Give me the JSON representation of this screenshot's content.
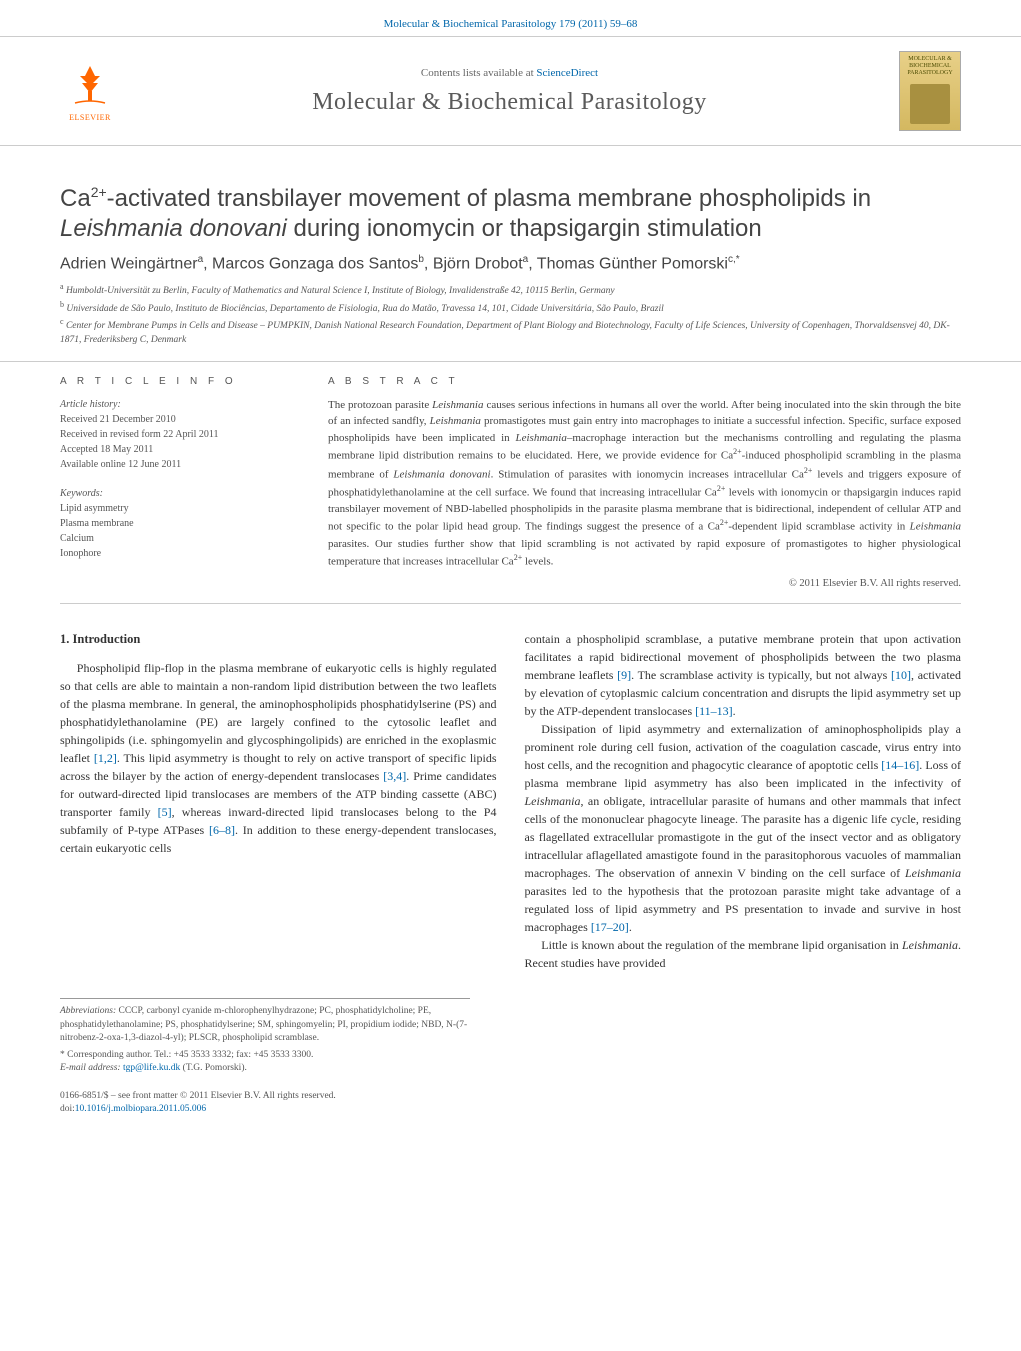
{
  "header": {
    "citation": "Molecular & Biochemical Parasitology 179 (2011) 59–68",
    "sd_prefix": "Contents lists available at ",
    "sd_link": "ScienceDirect",
    "journal": "Molecular & Biochemical Parasitology",
    "publisher": "ELSEVIER",
    "cover_label": "MOLECULAR & BIOCHEMICAL PARASITOLOGY"
  },
  "title": {
    "html": "Ca<sup>2+</sup>-activated transbilayer movement of plasma membrane phospholipids in <em>Leishmania donovani</em> during ionomycin or thapsigargin stimulation"
  },
  "authors": {
    "html": "Adrien Weingärtner<sup>a</sup>, Marcos Gonzaga dos Santos<sup>b</sup>, Björn Drobot<sup>a</sup>, Thomas Günther Pomorski<sup>c,*</sup>"
  },
  "affiliations": [
    {
      "sup": "a",
      "text": "Humboldt-Universität zu Berlin, Faculty of Mathematics and Natural Science I, Institute of Biology, Invalidenstraße 42, 10115 Berlin, Germany"
    },
    {
      "sup": "b",
      "text": "Universidade de São Paulo, Instituto de Biociências, Departamento de Fisiologia, Rua do Matão, Travessa 14, 101, Cidade Universitária, São Paulo, Brazil"
    },
    {
      "sup": "c",
      "text": "Center for Membrane Pumps in Cells and Disease – PUMPKIN, Danish National Research Foundation, Department of Plant Biology and Biotechnology, Faculty of Life Sciences, University of Copenhagen, Thorvaldsensvej 40, DK-1871, Frederiksberg C, Denmark"
    }
  ],
  "article_info": {
    "heading": "A R T I C L E   I N F O",
    "history_label": "Article history:",
    "history": [
      "Received 21 December 2010",
      "Received in revised form 22 April 2011",
      "Accepted 18 May 2011",
      "Available online 12 June 2011"
    ],
    "keywords_label": "Keywords:",
    "keywords": [
      "Lipid asymmetry",
      "Plasma membrane",
      "Calcium",
      "Ionophore"
    ]
  },
  "abstract": {
    "heading": "A B S T R A C T",
    "text_html": "The protozoan parasite <em>Leishmania</em> causes serious infections in humans all over the world. After being inoculated into the skin through the bite of an infected sandfly, <em>Leishmania</em> promastigotes must gain entry into macrophages to initiate a successful infection. Specific, surface exposed phospholipids have been implicated in <em>Leishmania</em>–macrophage interaction but the mechanisms controlling and regulating the plasma membrane lipid distribution remains to be elucidated. Here, we provide evidence for Ca<sup>2+</sup>-induced phospholipid scrambling in the plasma membrane of <em>Leishmania donovani</em>. Stimulation of parasites with ionomycin increases intracellular Ca<sup>2+</sup> levels and triggers exposure of phosphatidylethanolamine at the cell surface. We found that increasing intracellular Ca<sup>2+</sup> levels with ionomycin or thapsigargin induces rapid transbilayer movement of NBD-labelled phospholipids in the parasite plasma membrane that is bidirectional, independent of cellular ATP and not specific to the polar lipid head group. The findings suggest the presence of a Ca<sup>2+</sup>-dependent lipid scramblase activity in <em>Leishmania</em> parasites. Our studies further show that lipid scrambling is not activated by rapid exposure of promastigotes to higher physiological temperature that increases intracellular Ca<sup>2+</sup> levels.",
    "copyright": "© 2011 Elsevier B.V. All rights reserved."
  },
  "body": {
    "intro_heading": "1.  Introduction",
    "col1_p1_html": "Phospholipid flip-flop in the plasma membrane of eukaryotic cells is highly regulated so that cells are able to maintain a non-random lipid distribution between the two leaflets of the plasma membrane. In general, the aminophospholipids phosphatidylserine (PS) and phosphatidylethanolamine (PE) are largely confined to the cytosolic leaflet and sphingolipids (i.e. sphingomyelin and glycosphingolipids) are enriched in the exoplasmic leaflet <span class=\"ref\">[1,2]</span>. This lipid asymmetry is thought to rely on active transport of specific lipids across the bilayer by the action of energy-dependent translocases <span class=\"ref\">[3,4]</span>. Prime candidates for outward-directed lipid translocases are members of the ATP binding cassette (ABC) transporter family <span class=\"ref\">[5]</span>, whereas inward-directed lipid translocases belong to the P4 subfamily of P-type ATPases <span class=\"ref\">[6–8]</span>. In addition to these energy-dependent translocases, certain eukaryotic cells",
    "col2_p1_html": "contain a phospholipid scramblase, a putative membrane protein that upon activation facilitates a rapid bidirectional movement of phospholipids between the two plasma membrane leaflets <span class=\"ref\">[9]</span>. The scramblase activity is typically, but not always <span class=\"ref\">[10]</span>, activated by elevation of cytoplasmic calcium concentration and disrupts the lipid asymmetry set up by the ATP-dependent translocases <span class=\"ref\">[11–13]</span>.",
    "col2_p2_html": "Dissipation of lipid asymmetry and externalization of aminophospholipids play a prominent role during cell fusion, activation of the coagulation cascade, virus entry into host cells, and the recognition and phagocytic clearance of apoptotic cells <span class=\"ref\">[14–16]</span>. Loss of plasma membrane lipid asymmetry has also been implicated in the infectivity of <em>Leishmania</em>, an obligate, intracellular parasite of humans and other mammals that infect cells of the mononuclear phagocyte lineage. The parasite has a digenic life cycle, residing as flagellated extracellular promastigote in the gut of the insect vector and as obligatory intracellular aflagellated amastigote found in the parasitophorous vacuoles of mammalian macrophages. The observation of annexin V binding on the cell surface of <em>Leishmania</em> parasites led to the hypothesis that the protozoan parasite might take advantage of a regulated loss of lipid asymmetry and PS presentation to invade and survive in host macrophages <span class=\"ref\">[17–20]</span>.",
    "col2_p3_html": "Little is known about the regulation of the membrane lipid organisation in <em>Leishmania</em>. Recent studies have provided"
  },
  "footnotes": {
    "abbrev_label": "Abbreviations:",
    "abbrev_text": " CCCP, carbonyl cyanide m-chlorophenylhydrazone; PC, phosphatidylcholine; PE, phosphatidylethanolamine; PS, phosphatidylserine; SM, sphingomyelin; PI, propidium iodide; NBD, N-(7-nitrobenz-2-oxa-1,3-diazol-4-yl); PLSCR, phospholipid scramblase.",
    "corr_label": "* Corresponding author. ",
    "corr_text": "Tel.: +45 3533 3332; fax: +45 3533 3300.",
    "email_label": "E-mail address: ",
    "email": "tgp@life.ku.dk",
    "email_suffix": " (T.G. Pomorski)."
  },
  "footer": {
    "issn_line": "0166-6851/$ – see front matter © 2011 Elsevier B.V. All rights reserved.",
    "doi_label": "doi:",
    "doi": "10.1016/j.molbiopara.2011.05.006"
  },
  "colors": {
    "link": "#0066aa",
    "text": "#333333",
    "muted": "#555555",
    "rule": "#cccccc",
    "elsevier_orange": "#ff6600",
    "cover_top": "#e8d088",
    "cover_bottom": "#d4b860"
  },
  "typography": {
    "body_pt": 12,
    "title_pt": 24,
    "journal_pt": 24,
    "authors_pt": 16,
    "small_pt": 10,
    "footnote_pt": 9.5
  }
}
